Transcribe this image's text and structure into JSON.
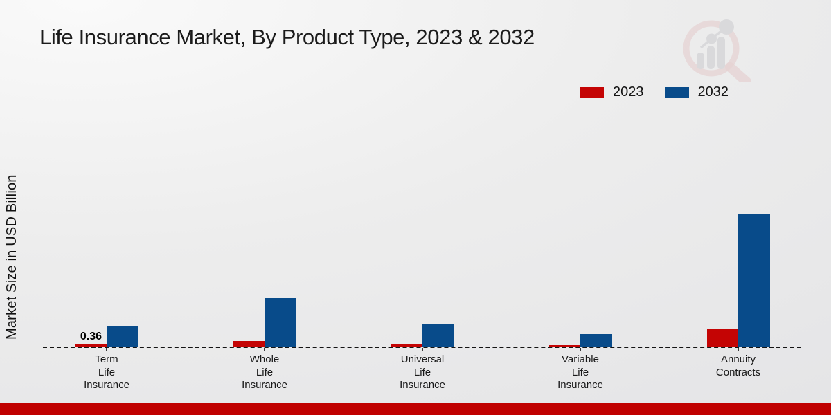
{
  "page": {
    "title": "Life Insurance Market, By Product Type, 2023 & 2032"
  },
  "colors": {
    "series_2023": "#c40404",
    "series_2032": "#084b8a",
    "footer_bar": "#c00000",
    "background": "#ededed",
    "baseline": "#141414",
    "watermark_ring": "#dfb9b9",
    "watermark_bars": "#c7c7cb"
  },
  "icons": {
    "watermark": "market-research-magnifier-bar-chart-logo"
  },
  "legend": {
    "position": "top-right",
    "items": [
      {
        "label": "2023",
        "color": "#c40404"
      },
      {
        "label": "2032",
        "color": "#084b8a"
      }
    ]
  },
  "chart_data": {
    "type": "bar",
    "title": "Life Insurance Market, By Product Type, 2023 & 2032",
    "xlabel": "",
    "ylabel": "Market Size in USD Billion",
    "categories": [
      "Term Life Insurance",
      "Whole Life Insurance",
      "Universal Life Insurance",
      "Variable Life Insurance",
      "Annuity Contracts"
    ],
    "category_label_lines": [
      [
        "Term",
        "Life",
        "Insurance"
      ],
      [
        "Whole",
        "Life",
        "Insurance"
      ],
      [
        "Universal",
        "Life",
        "Insurance"
      ],
      [
        "Variable",
        "Life",
        "Insurance"
      ],
      [
        "Annuity",
        "Contracts"
      ]
    ],
    "series": [
      {
        "name": "2023",
        "color": "#c40404",
        "values": [
          0.36,
          0.65,
          0.35,
          0.22,
          1.9
        ]
      },
      {
        "name": "2032",
        "color": "#084b8a",
        "values": [
          2.25,
          5.1,
          2.4,
          1.4,
          13.8
        ]
      }
    ],
    "value_labels_shown": [
      {
        "series": "2023",
        "category": "Term Life Insurance",
        "text": "0.36"
      }
    ],
    "units": "USD Billion",
    "ylim": [
      0,
      15
    ],
    "gridlines": false,
    "y_axis_tick_labels_visible": false,
    "baseline_style": "dashed",
    "legend_position": "top-right"
  }
}
